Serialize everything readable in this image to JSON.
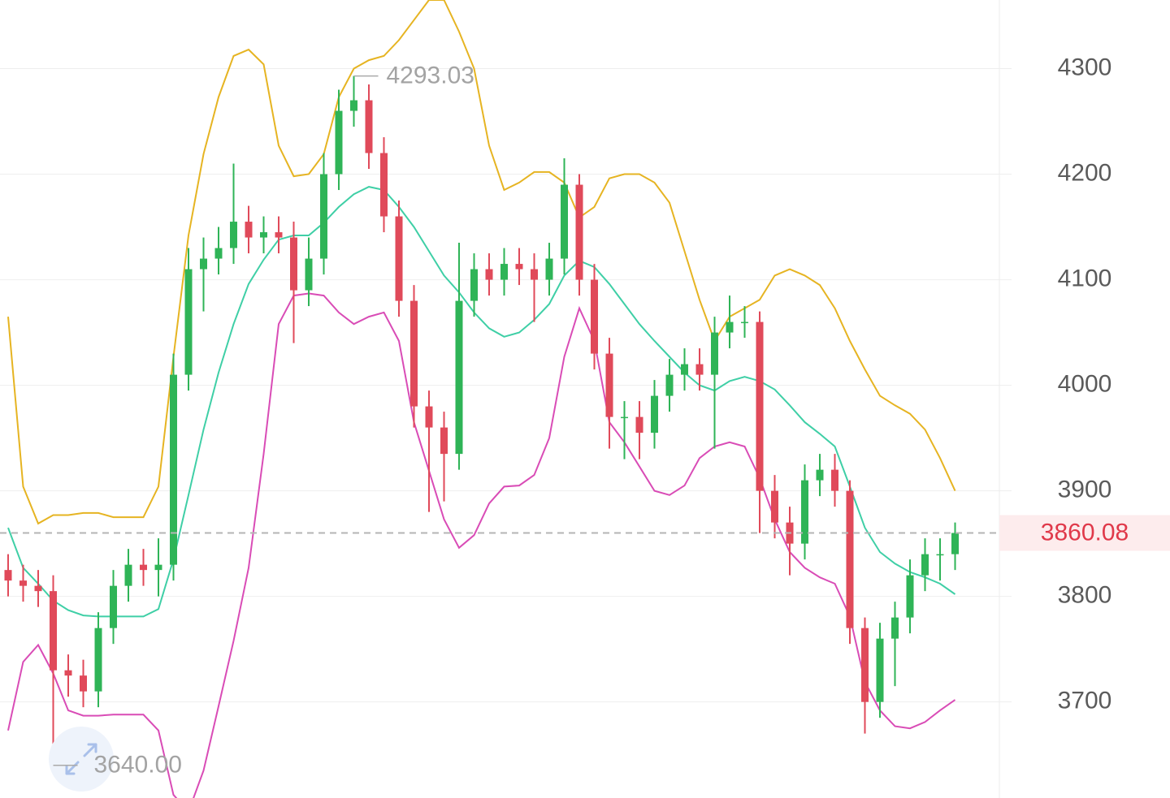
{
  "chart_data": {
    "type": "candlestick",
    "ylim": [
      3609,
      4365
    ],
    "yticks": [
      3700,
      3800,
      3900,
      4000,
      4100,
      4200,
      4300
    ],
    "grid": true,
    "up_color": "#2fb457",
    "down_color": "#e04a5a",
    "open": [
      3825,
      3815,
      3810,
      3805,
      3730,
      3725,
      3710,
      3770,
      3810,
      3830,
      3825,
      3830,
      4010,
      4110,
      4120,
      4130,
      4155,
      4140,
      4145,
      4140,
      4090,
      4120,
      4200,
      4260,
      4270,
      4220,
      4160,
      4080,
      3980,
      3960,
      3935,
      4080,
      4110,
      4100,
      4115,
      4110,
      4100,
      4120,
      4190,
      4100,
      4030,
      3970,
      3970,
      3955,
      3990,
      4010,
      4020,
      4010,
      4050,
      4060,
      4060,
      3900,
      3870,
      3850,
      3910,
      3920,
      3900,
      3770,
      3700,
      3760,
      3780,
      3820,
      3840,
      3840
    ],
    "high": [
      3840,
      3830,
      3825,
      3820,
      3745,
      3740,
      3785,
      3825,
      3845,
      3845,
      3855,
      4030,
      4130,
      4140,
      4150,
      4210,
      4170,
      4160,
      4160,
      4155,
      4140,
      4220,
      4280,
      4293.03,
      4285,
      4235,
      4175,
      4095,
      3995,
      3975,
      4135,
      4125,
      4125,
      4130,
      4130,
      4125,
      4135,
      4215,
      4200,
      4115,
      4045,
      3985,
      3985,
      4005,
      4025,
      4035,
      4035,
      4065,
      4085,
      4075,
      4070,
      3915,
      3885,
      3925,
      3935,
      3935,
      3910,
      3780,
      3775,
      3795,
      3835,
      3855,
      3855,
      3870
    ],
    "low": [
      3800,
      3795,
      3790,
      3640,
      3705,
      3695,
      3695,
      3755,
      3795,
      3810,
      3800,
      3815,
      3995,
      4070,
      4105,
      4115,
      4125,
      4125,
      4125,
      4040,
      4075,
      4105,
      4185,
      4245,
      4205,
      4145,
      4065,
      3960,
      3880,
      3890,
      3920,
      4065,
      4085,
      4085,
      4095,
      4060,
      4085,
      4105,
      4085,
      4015,
      3940,
      3930,
      3930,
      3940,
      3975,
      3995,
      3995,
      3940,
      4035,
      4045,
      3860,
      3855,
      3820,
      3835,
      3895,
      3885,
      3755,
      3670,
      3685,
      3715,
      3765,
      3805,
      3815,
      3825
    ],
    "close": [
      3815,
      3810,
      3805,
      3730,
      3725,
      3710,
      3770,
      3810,
      3830,
      3825,
      3830,
      4010,
      4110,
      4120,
      4130,
      4155,
      4140,
      4145,
      4140,
      4090,
      4120,
      4200,
      4260,
      4270,
      4220,
      4160,
      4080,
      3980,
      3960,
      3935,
      4080,
      4110,
      4100,
      4115,
      4110,
      4100,
      4120,
      4190,
      4100,
      4030,
      3970,
      3970,
      3955,
      3990,
      4010,
      4020,
      4010,
      4050,
      4060,
      4060,
      3900,
      3870,
      3850,
      3910,
      3920,
      3900,
      3770,
      3700,
      3760,
      3780,
      3820,
      3840,
      3840,
      3860.08
    ],
    "bands": [
      {
        "color": "#e6b422",
        "values": [
          4065,
          3904,
          3869,
          3877,
          3877,
          3879,
          3879,
          3875,
          3875,
          3875,
          3904,
          4027,
          4142,
          4219,
          4273,
          4312,
          4318,
          4304,
          4227,
          4198,
          4200,
          4219,
          4273,
          4300,
          4308,
          4312,
          4327,
          4346,
          4365,
          4365,
          4335,
          4300,
          4227,
          4185,
          4192,
          4202,
          4202,
          4192,
          4159,
          4169,
          4196,
          4200,
          4200,
          4192,
          4173,
          4127,
          4081,
          4042,
          4065,
          4073,
          4081,
          4104,
          4110,
          4104,
          4095,
          4073,
          4042,
          4015,
          3990,
          3981,
          3973,
          3958,
          3931,
          3900
        ]
      },
      {
        "color": "#3fcfa6",
        "values": [
          3865,
          3827,
          3812,
          3796,
          3787,
          3782,
          3781,
          3781,
          3781,
          3781,
          3788,
          3835,
          3896,
          3958,
          4012,
          4058,
          4096,
          4119,
          4138,
          4142,
          4142,
          4154,
          4169,
          4181,
          4188,
          4185,
          4169,
          4150,
          4127,
          4104,
          4088,
          4069,
          4054,
          4046,
          4050,
          4062,
          4077,
          4104,
          4118,
          4112,
          4096,
          4077,
          4058,
          4042,
          4027,
          4012,
          4000,
          3995,
          4004,
          4008,
          4004,
          3996,
          3981,
          3965,
          3954,
          3942,
          3904,
          3865,
          3842,
          3831,
          3823,
          3818,
          3812,
          3802
        ]
      },
      {
        "color": "#d94cb6",
        "values": [
          3673,
          3738,
          3754,
          3727,
          3692,
          3687,
          3687,
          3688,
          3688,
          3688,
          3673,
          3612,
          3596,
          3635,
          3696,
          3758,
          3827,
          3935,
          4058,
          4085,
          4087,
          4085,
          4069,
          4058,
          4065,
          4069,
          4042,
          3965,
          3919,
          3873,
          3846,
          3858,
          3888,
          3904,
          3905,
          3915,
          3950,
          4027,
          4073,
          4042,
          3965,
          3946,
          3923,
          3900,
          3896,
          3905,
          3931,
          3942,
          3946,
          3942,
          3912,
          3873,
          3842,
          3827,
          3818,
          3812,
          3781,
          3719,
          3692,
          3677,
          3675,
          3681,
          3692,
          3702
        ]
      }
    ],
    "annotations": [
      {
        "value": 4293.03,
        "label": "4293.03"
      },
      {
        "value": 3640,
        "label": "3640.00"
      }
    ]
  }
}
